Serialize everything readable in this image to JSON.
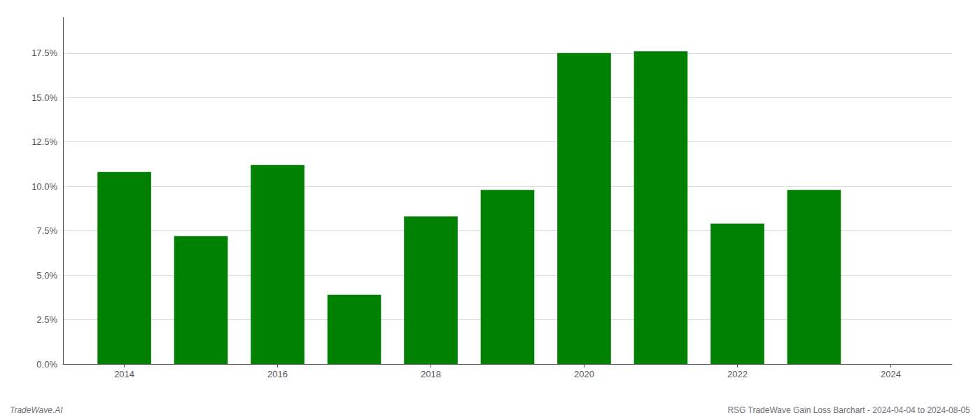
{
  "chart_data": {
    "type": "bar",
    "x": [
      2014,
      2015,
      2016,
      2017,
      2018,
      2019,
      2020,
      2021,
      2022,
      2023
    ],
    "values": [
      0.108,
      0.072,
      0.112,
      0.039,
      0.083,
      0.098,
      0.175,
      0.176,
      0.079,
      0.098
    ],
    "color": "#008000",
    "xlim": [
      2013.2,
      2024.8
    ],
    "xticks": [
      2014,
      2016,
      2018,
      2020,
      2022,
      2024
    ],
    "ylim": [
      0,
      0.195
    ],
    "yticks": [
      {
        "value": 0.0,
        "label": "0.0%"
      },
      {
        "value": 0.025,
        "label": "2.5%"
      },
      {
        "value": 0.05,
        "label": "5.0%"
      },
      {
        "value": 0.075,
        "label": "7.5%"
      },
      {
        "value": 0.1,
        "label": "10.0%"
      },
      {
        "value": 0.125,
        "label": "12.5%"
      },
      {
        "value": 0.15,
        "label": "15.0%"
      },
      {
        "value": 0.175,
        "label": "17.5%"
      }
    ],
    "grid": true,
    "annotations": [
      "TradeWave.AI",
      "RSG TradeWave Gain Loss Barchart - 2024-04-04 to 2024-08-05"
    ]
  }
}
